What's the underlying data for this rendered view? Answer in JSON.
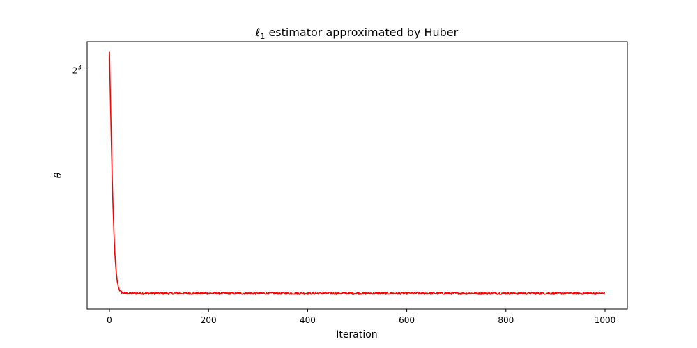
{
  "chart_data": {
    "type": "line",
    "title_main": "ℓ",
    "title_sub": "1",
    "title_rest": " estimator approximated by Huber",
    "xlabel": "Iteration",
    "ylabel": "θ",
    "xlim": [
      -45,
      1045
    ],
    "xticks": [
      0,
      200,
      400,
      600,
      800,
      1000
    ],
    "xtick_labels": [
      "0",
      "200",
      "400",
      "600",
      "800",
      "1000"
    ],
    "yscale": "log2",
    "ylim": [
      0.68,
      10.7
    ],
    "yticks": [
      8
    ],
    "ytick_labels": [
      {
        "base": "2",
        "exp": "3"
      }
    ],
    "grid": false,
    "series": [
      {
        "color": "#ff0000",
        "x_start": 0,
        "x_end": 999,
        "start_value": 9.7,
        "plateau_value": 0.8,
        "decay_rate": 0.28,
        "noise_amplitude": 0.012
      }
    ]
  }
}
